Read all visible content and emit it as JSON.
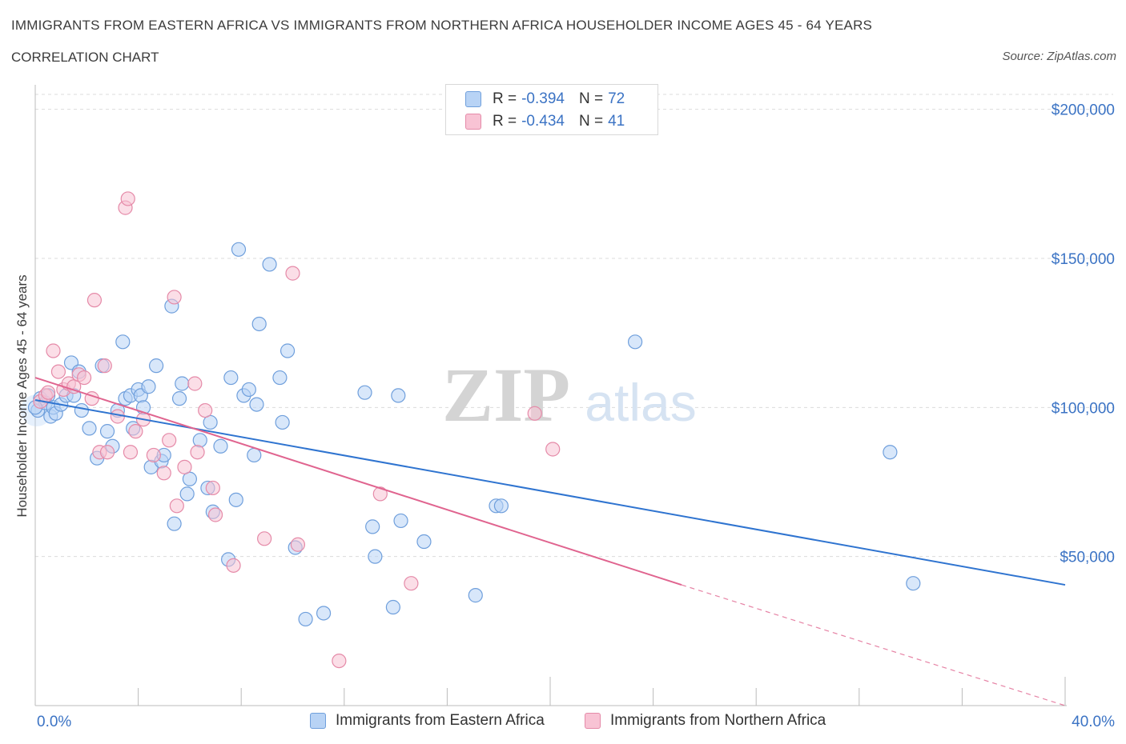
{
  "header": {
    "title": "IMMIGRANTS FROM EASTERN AFRICA VS IMMIGRANTS FROM NORTHERN AFRICA HOUSEHOLDER INCOME AGES 45 - 64 YEARS",
    "subtitle": "CORRELATION CHART",
    "source": "Source: ZipAtlas.com"
  },
  "legend": {
    "rows": [
      {
        "r_label": "R =",
        "r_value": "-0.394",
        "n_label": "N =",
        "n_value": "72"
      },
      {
        "r_label": "R =",
        "r_value": "-0.434",
        "n_label": "N =",
        "n_value": "41"
      }
    ]
  },
  "watermark": {
    "zip": "ZIP",
    "atlas": "atlas"
  },
  "colors": {
    "eastern_fill": "#b8d3f5",
    "eastern_stroke": "#6f9fdc",
    "eastern_line": "#2f74d0",
    "northern_fill": "#f8c3d4",
    "northern_stroke": "#e58aa8",
    "northern_line": "#e0648f",
    "axis_text": "#3b73c4",
    "grid": "#dcdcdc"
  },
  "chart_data": {
    "type": "scatter",
    "ylabel": "Householder Income Ages 45 - 64 years",
    "xlim": [
      0,
      40
    ],
    "ylim": [
      0,
      205000
    ],
    "x_tick_labels": [
      "0.0%",
      "40.0%"
    ],
    "y_ticks": [
      50000,
      100000,
      150000,
      200000
    ],
    "y_tick_labels": [
      "$50,000",
      "$100,000",
      "$150,000",
      "$200,000"
    ],
    "grid": true,
    "legend_position": "top-center",
    "series": [
      {
        "name": "Immigrants from Eastern Africa",
        "color": "#6f9fdc",
        "trend": {
          "x": [
            0,
            40
          ],
          "y": [
            102500,
            40500
          ]
        },
        "points": [
          [
            0.1,
            99000
          ],
          [
            0.2,
            103000
          ],
          [
            0.4,
            101500
          ],
          [
            0.5,
            104000
          ],
          [
            0.6,
            97000
          ],
          [
            0.7,
            100000
          ],
          [
            0.8,
            98000
          ],
          [
            1.0,
            101000
          ],
          [
            1.2,
            104000
          ],
          [
            1.4,
            115000
          ],
          [
            1.5,
            104000
          ],
          [
            1.7,
            112000
          ],
          [
            1.8,
            99000
          ],
          [
            2.1,
            93000
          ],
          [
            2.4,
            83000
          ],
          [
            2.6,
            114000
          ],
          [
            2.8,
            92000
          ],
          [
            3.0,
            87000
          ],
          [
            3.2,
            99000
          ],
          [
            3.4,
            122000
          ],
          [
            3.5,
            103000
          ],
          [
            3.7,
            104000
          ],
          [
            3.8,
            93000
          ],
          [
            4.0,
            106000
          ],
          [
            4.1,
            104000
          ],
          [
            4.2,
            100000
          ],
          [
            4.4,
            107000
          ],
          [
            4.5,
            80000
          ],
          [
            4.7,
            114000
          ],
          [
            4.9,
            82000
          ],
          [
            5.0,
            84000
          ],
          [
            5.3,
            134000
          ],
          [
            5.4,
            61000
          ],
          [
            5.6,
            103000
          ],
          [
            5.7,
            108000
          ],
          [
            5.9,
            71000
          ],
          [
            6.0,
            76000
          ],
          [
            6.4,
            89000
          ],
          [
            6.7,
            73000
          ],
          [
            6.8,
            95000
          ],
          [
            6.9,
            65000
          ],
          [
            7.2,
            87000
          ],
          [
            7.5,
            49000
          ],
          [
            7.6,
            110000
          ],
          [
            7.8,
            69000
          ],
          [
            7.9,
            153000
          ],
          [
            8.1,
            104000
          ],
          [
            8.3,
            106000
          ],
          [
            8.5,
            84000
          ],
          [
            8.6,
            101000
          ],
          [
            8.7,
            128000
          ],
          [
            9.1,
            148000
          ],
          [
            9.5,
            110000
          ],
          [
            9.6,
            95000
          ],
          [
            9.8,
            119000
          ],
          [
            10.1,
            53000
          ],
          [
            10.5,
            29000
          ],
          [
            11.2,
            31000
          ],
          [
            12.8,
            105000
          ],
          [
            13.1,
            60000
          ],
          [
            13.2,
            50000
          ],
          [
            13.9,
            33000
          ],
          [
            14.1,
            104000
          ],
          [
            14.2,
            62000
          ],
          [
            15.1,
            55000
          ],
          [
            17.1,
            37000
          ],
          [
            17.9,
            67000
          ],
          [
            18.1,
            67000
          ],
          [
            23.3,
            122000
          ],
          [
            33.2,
            85000
          ],
          [
            34.1,
            41000
          ],
          [
            0.0,
            100000
          ]
        ]
      },
      {
        "name": "Immigrants from Northern Africa",
        "color": "#e58aa8",
        "trend": {
          "x": [
            0,
            25.1
          ],
          "y": [
            110000,
            40500
          ]
        },
        "trend_dashed": {
          "x": [
            25.1,
            40
          ],
          "y": [
            40500,
            0
          ]
        },
        "points": [
          [
            0.2,
            102000
          ],
          [
            0.4,
            104000
          ],
          [
            0.5,
            105000
          ],
          [
            0.7,
            119000
          ],
          [
            0.9,
            112000
          ],
          [
            1.1,
            106000
          ],
          [
            1.3,
            108000
          ],
          [
            1.5,
            107000
          ],
          [
            1.7,
            111000
          ],
          [
            1.9,
            110000
          ],
          [
            2.2,
            103000
          ],
          [
            2.3,
            136000
          ],
          [
            2.5,
            85000
          ],
          [
            2.7,
            114000
          ],
          [
            2.8,
            85000
          ],
          [
            3.2,
            97000
          ],
          [
            3.5,
            167000
          ],
          [
            3.6,
            170000
          ],
          [
            3.7,
            85000
          ],
          [
            3.9,
            92000
          ],
          [
            4.2,
            96000
          ],
          [
            4.6,
            84000
          ],
          [
            5.0,
            78000
          ],
          [
            5.2,
            89000
          ],
          [
            5.4,
            137000
          ],
          [
            5.5,
            67000
          ],
          [
            5.8,
            80000
          ],
          [
            6.2,
            108000
          ],
          [
            6.3,
            85000
          ],
          [
            6.6,
            99000
          ],
          [
            6.9,
            73000
          ],
          [
            7.0,
            64000
          ],
          [
            7.7,
            47000
          ],
          [
            8.9,
            56000
          ],
          [
            10.0,
            145000
          ],
          [
            10.2,
            54000
          ],
          [
            11.8,
            15000
          ],
          [
            13.4,
            71000
          ],
          [
            14.6,
            41000
          ],
          [
            19.4,
            98000
          ],
          [
            20.1,
            86000
          ]
        ]
      }
    ]
  }
}
